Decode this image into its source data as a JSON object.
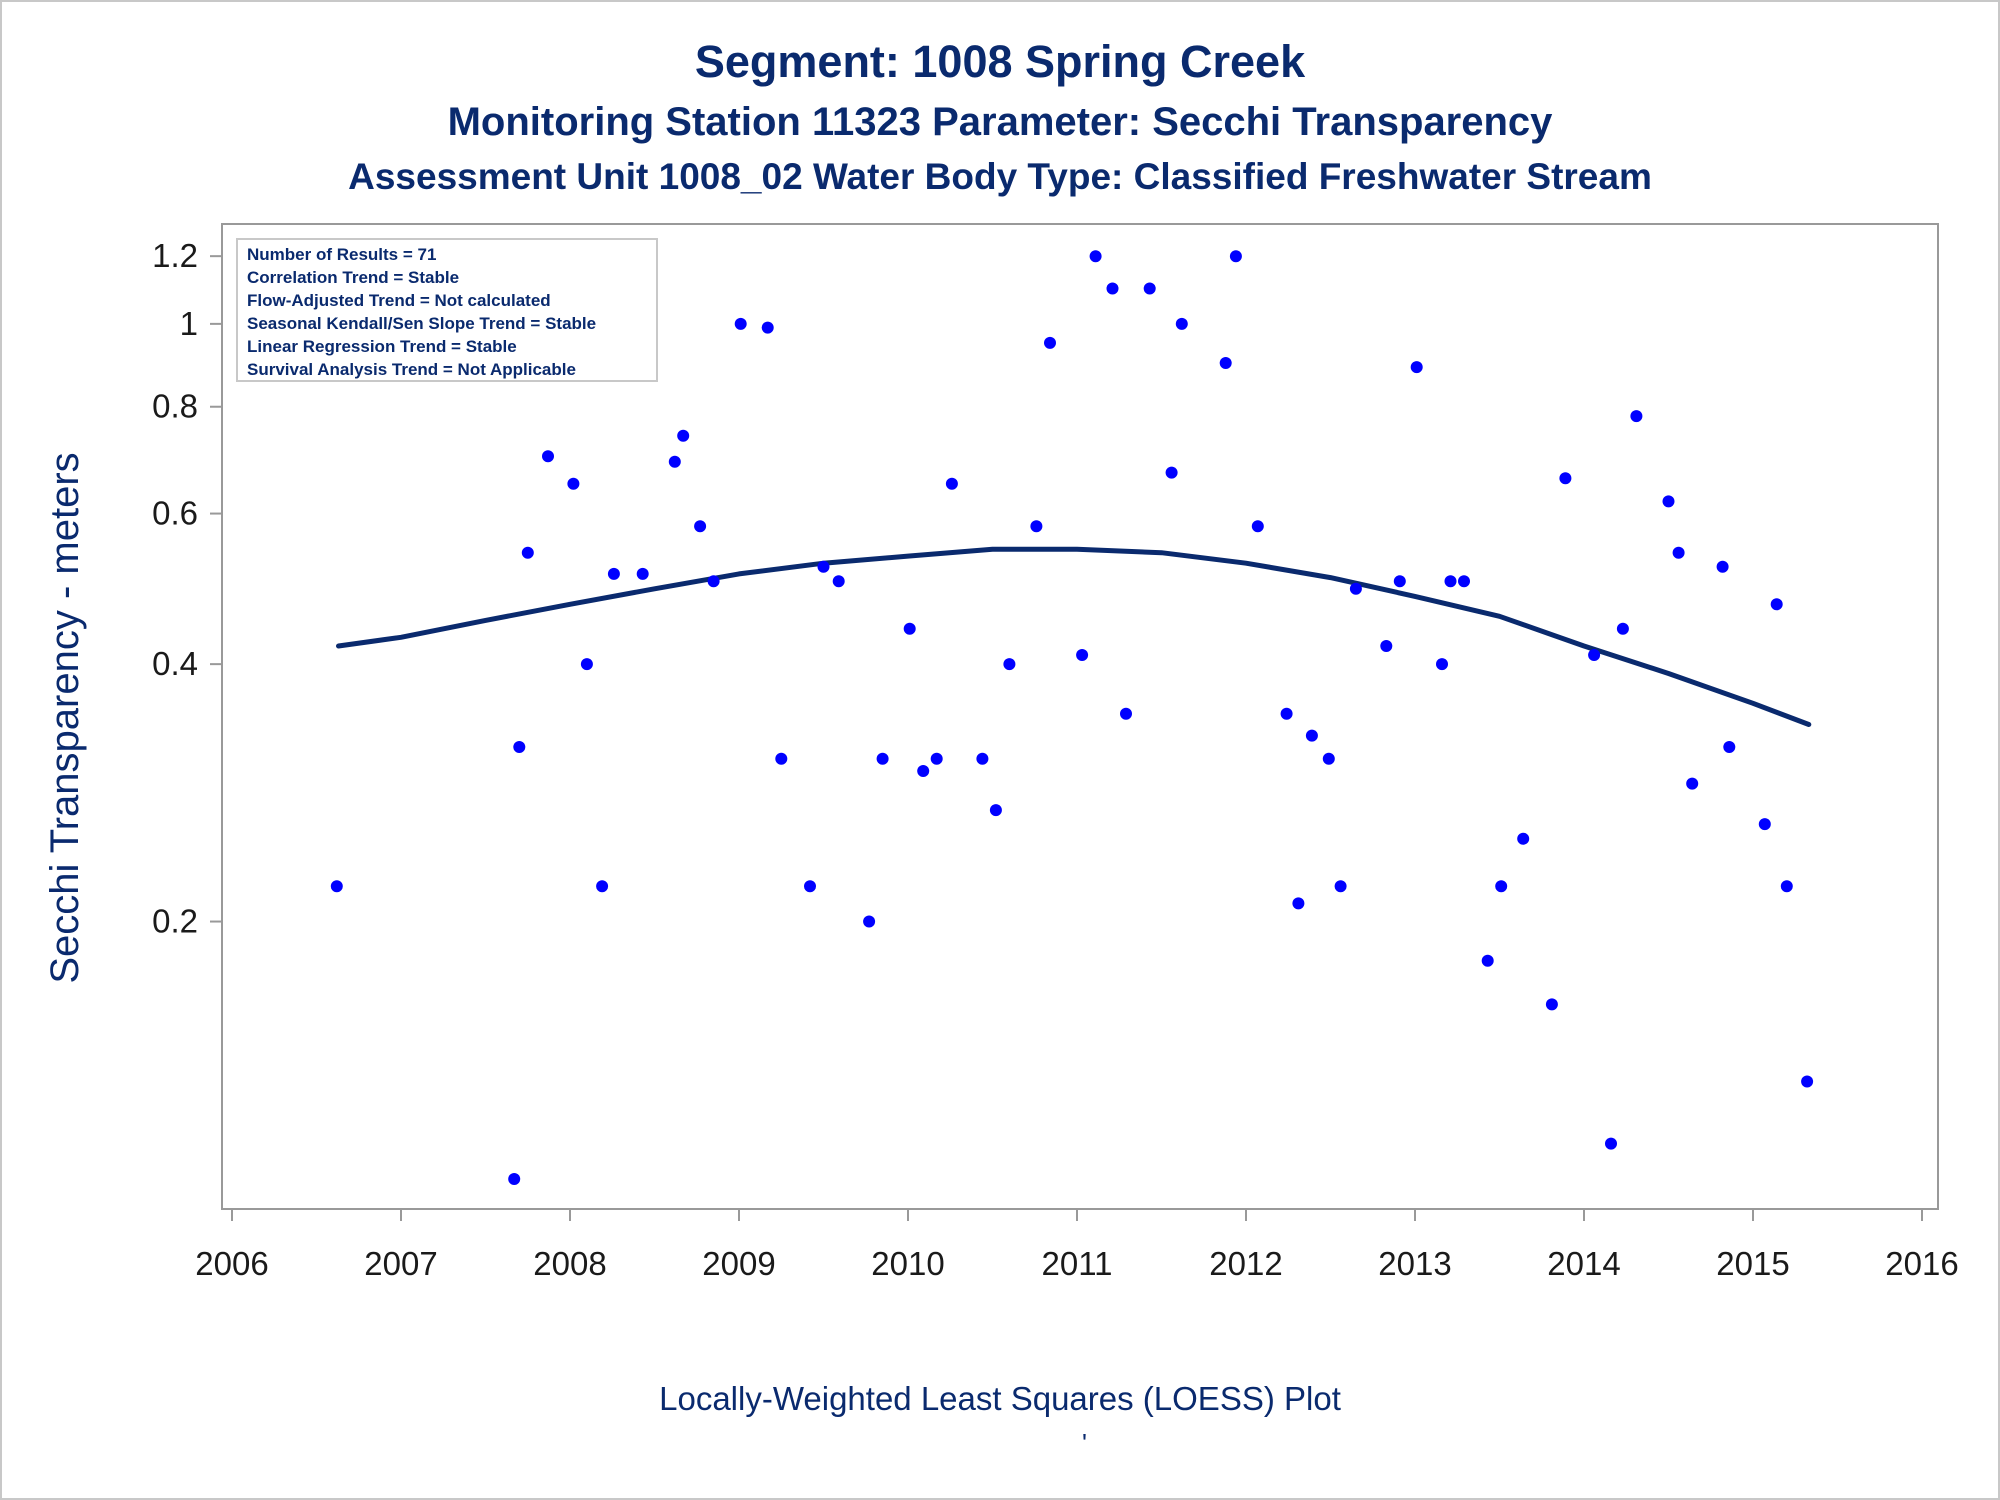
{
  "header": {
    "title": "Segment: 1008  Spring Creek",
    "subtitle1": "Monitoring Station 11323 Parameter: Secchi Transparency",
    "subtitle2": "Assessment Unit 1008_02   Water Body Type: Classified Freshwater Stream"
  },
  "footer": {
    "caption": "Locally-Weighted Least Squares (LOESS) Plot",
    "mark": "'"
  },
  "stats_box": [
    "Number of Results = 71",
    "Correlation Trend = Stable",
    "Flow-Adjusted Trend = Not calculated",
    "Seasonal Kendall/Sen Slope Trend = Stable",
    "Linear Regression Trend = Stable",
    "Survival Analysis Trend = Not Applicable"
  ],
  "colors": {
    "points": "#0000ff",
    "loess": "#0a2a6e",
    "text": "#0a2a6e",
    "axis": "#999999"
  },
  "chart_data": {
    "type": "scatter",
    "title": "Segment: 1008  Spring Creek",
    "ylabel": "Secchi Transparency - meters",
    "xlabel": "",
    "y_scale": "log",
    "ylim": [
      0.095,
      1.25
    ],
    "xlim": [
      2006,
      2016
    ],
    "x_ticks": [
      "2006",
      "2007",
      "2008",
      "2009",
      "2010",
      "2011",
      "2012",
      "2013",
      "2014",
      "2015",
      "2016"
    ],
    "y_ticks": [
      {
        "value": 0.2,
        "label": "0.2"
      },
      {
        "value": 0.4,
        "label": "0.4"
      },
      {
        "value": 0.6,
        "label": "0.6"
      },
      {
        "value": 0.8,
        "label": "0.8"
      },
      {
        "value": 1.0,
        "label": "1"
      },
      {
        "value": 1.2,
        "label": "1.2"
      }
    ],
    "grid": false,
    "series": [
      {
        "type": "scatter",
        "points": [
          [
            2006.62,
            0.22
          ],
          [
            2007.67,
            0.1
          ],
          [
            2007.7,
            0.32
          ],
          [
            2007.75,
            0.54
          ],
          [
            2007.87,
            0.7
          ],
          [
            2008.02,
            0.65
          ],
          [
            2008.1,
            0.4
          ],
          [
            2008.19,
            0.22
          ],
          [
            2008.26,
            0.51
          ],
          [
            2008.43,
            0.51
          ],
          [
            2008.62,
            0.69
          ],
          [
            2008.67,
            0.74
          ],
          [
            2008.77,
            0.58
          ],
          [
            2008.85,
            0.5
          ],
          [
            2009.01,
            1.0
          ],
          [
            2009.17,
            0.99
          ],
          [
            2009.25,
            0.31
          ],
          [
            2009.42,
            0.22
          ],
          [
            2009.5,
            0.52
          ],
          [
            2009.59,
            0.5
          ],
          [
            2009.77,
            0.2
          ],
          [
            2009.85,
            0.31
          ],
          [
            2010.01,
            0.44
          ],
          [
            2010.09,
            0.3
          ],
          [
            2010.17,
            0.31
          ],
          [
            2010.26,
            0.65
          ],
          [
            2010.44,
            0.31
          ],
          [
            2010.52,
            0.27
          ],
          [
            2010.6,
            0.4
          ],
          [
            2010.76,
            0.58
          ],
          [
            2010.84,
            0.95
          ],
          [
            2011.03,
            0.41
          ],
          [
            2011.11,
            1.2
          ],
          [
            2011.21,
            1.1
          ],
          [
            2011.29,
            0.35
          ],
          [
            2011.43,
            1.1
          ],
          [
            2011.56,
            0.67
          ],
          [
            2011.62,
            1.0
          ],
          [
            2011.88,
            0.9
          ],
          [
            2011.94,
            1.2
          ],
          [
            2012.07,
            0.58
          ],
          [
            2012.24,
            0.35
          ],
          [
            2012.31,
            0.21
          ],
          [
            2012.39,
            0.33
          ],
          [
            2012.49,
            0.31
          ],
          [
            2012.56,
            0.22
          ],
          [
            2012.65,
            0.49
          ],
          [
            2012.83,
            0.42
          ],
          [
            2012.91,
            0.5
          ],
          [
            2013.01,
            0.89
          ],
          [
            2013.16,
            0.4
          ],
          [
            2013.21,
            0.5
          ],
          [
            2013.29,
            0.5
          ],
          [
            2013.43,
            0.18
          ],
          [
            2013.51,
            0.22
          ],
          [
            2013.64,
            0.25
          ],
          [
            2013.81,
            0.16
          ],
          [
            2013.89,
            0.66
          ],
          [
            2014.06,
            0.41
          ],
          [
            2014.16,
            0.11
          ],
          [
            2014.23,
            0.44
          ],
          [
            2014.31,
            0.78
          ],
          [
            2014.5,
            0.62
          ],
          [
            2014.56,
            0.54
          ],
          [
            2014.64,
            0.29
          ],
          [
            2014.82,
            0.52
          ],
          [
            2014.86,
            0.32
          ],
          [
            2015.07,
            0.26
          ],
          [
            2015.14,
            0.47
          ],
          [
            2015.2,
            0.22
          ],
          [
            2015.32,
            0.13
          ]
        ]
      },
      {
        "type": "line",
        "points": [
          [
            2006.63,
            0.42
          ],
          [
            2007.0,
            0.43
          ],
          [
            2007.5,
            0.45
          ],
          [
            2008.0,
            0.47
          ],
          [
            2008.5,
            0.49
          ],
          [
            2009.0,
            0.51
          ],
          [
            2009.5,
            0.525
          ],
          [
            2010.0,
            0.535
          ],
          [
            2010.5,
            0.545
          ],
          [
            2011.0,
            0.545
          ],
          [
            2011.5,
            0.54
          ],
          [
            2012.0,
            0.525
          ],
          [
            2012.5,
            0.505
          ],
          [
            2013.0,
            0.48
          ],
          [
            2013.5,
            0.455
          ],
          [
            2014.0,
            0.42
          ],
          [
            2014.5,
            0.39
          ],
          [
            2015.0,
            0.36
          ],
          [
            2015.33,
            0.34
          ]
        ]
      }
    ]
  }
}
